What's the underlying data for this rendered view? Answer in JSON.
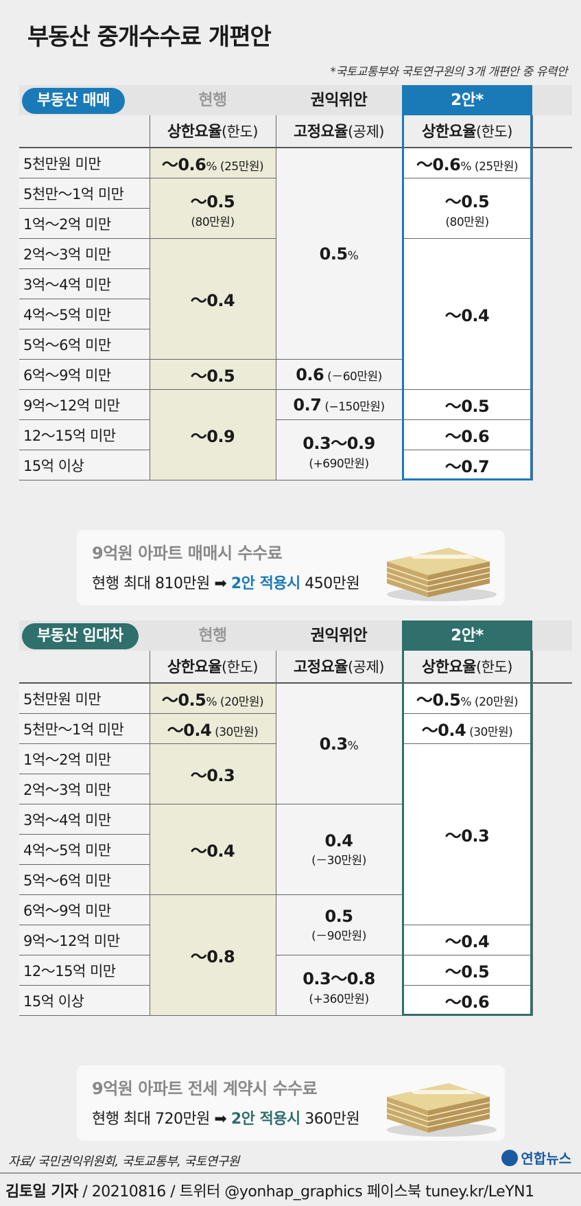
{
  "title": "부동산 중개수수료 개편안",
  "note": "*국토교통부와 국토연구원의 3개 개편안 중 유력안",
  "chart_data": {
    "type": "table",
    "tables": [
      {
        "tag": "부동산 매매",
        "columns": [
          "현행",
          "권익위안",
          "2안*"
        ],
        "subcolumns": [
          {
            "main": "상한요율",
            "paren": "(한도)"
          },
          {
            "main": "고정요율",
            "paren": "(공제)"
          },
          {
            "main": "상한요율",
            "paren": "(한도)"
          }
        ],
        "rows": [
          "5천만원 미만",
          "5천만～1억 미만",
          "1억～2억 미만",
          "2억～3억 미만",
          "3억～4억 미만",
          "4억～5억 미만",
          "5억～6억 미만",
          "6억～9억 미만",
          "9억～12억 미만",
          "12～15억 미만",
          "15억 이상"
        ],
        "current": [
          {
            "rows": [
              0,
              0
            ],
            "main": "～0.6",
            "unit": "%",
            "sub": "(25만원)"
          },
          {
            "rows": [
              1,
              2
            ],
            "main": "～0.5",
            "sub": "(80만원)"
          },
          {
            "rows": [
              3,
              6
            ],
            "main": "～0.4"
          },
          {
            "rows": [
              7,
              7
            ],
            "main": "～0.5"
          },
          {
            "rows": [
              8,
              10
            ],
            "main": "～0.9"
          }
        ],
        "acrc": [
          {
            "rows": [
              0,
              6
            ],
            "main": "0.5",
            "unit": "%"
          },
          {
            "rows": [
              7,
              7
            ],
            "main": "0.6",
            "sub": "(－60만원)"
          },
          {
            "rows": [
              8,
              8
            ],
            "main": "0.7",
            "sub": "(−150만원)"
          },
          {
            "rows": [
              9,
              10
            ],
            "main": "0.3～0.9",
            "sub": "(+690만원)"
          }
        ],
        "plan2": [
          {
            "rows": [
              0,
              0
            ],
            "main": "～0.6",
            "unit": "%",
            "sub": "(25만원)"
          },
          {
            "rows": [
              1,
              2
            ],
            "main": "～0.5",
            "sub": "(80만원)"
          },
          {
            "rows": [
              3,
              7
            ],
            "main": "～0.4"
          },
          {
            "rows": [
              8,
              8
            ],
            "main": "～0.5"
          },
          {
            "rows": [
              9,
              9
            ],
            "main": "～0.6"
          },
          {
            "rows": [
              10,
              10
            ],
            "main": "～0.7"
          }
        ]
      },
      {
        "tag": "부동산 임대차",
        "columns": [
          "현행",
          "권익위안",
          "2안*"
        ],
        "subcolumns": [
          {
            "main": "상한요율",
            "paren": "(한도)"
          },
          {
            "main": "고정요율",
            "paren": "(공제)"
          },
          {
            "main": "상한요율",
            "paren": "(한도)"
          }
        ],
        "rows": [
          "5천만원 미만",
          "5천만～1억 미만",
          "1억～2억 미만",
          "2억～3억 미만",
          "3억～4억 미만",
          "4억～5억 미만",
          "5억～6억 미만",
          "6억～9억 미만",
          "9억～12억 미만",
          "12～15억 미만",
          "15억 이상"
        ],
        "current": [
          {
            "rows": [
              0,
              0
            ],
            "main": "～0.5",
            "unit": "%",
            "sub": "(20만원)"
          },
          {
            "rows": [
              1,
              1
            ],
            "main": "～0.4",
            "sub": "(30만원)"
          },
          {
            "rows": [
              2,
              3
            ],
            "main": "～0.3"
          },
          {
            "rows": [
              4,
              6
            ],
            "main": "～0.4"
          },
          {
            "rows": [
              7,
              10
            ],
            "main": "～0.8"
          }
        ],
        "acrc": [
          {
            "rows": [
              0,
              3
            ],
            "main": "0.3",
            "unit": "%"
          },
          {
            "rows": [
              4,
              6
            ],
            "main": "0.4",
            "sub": "(－30만원)"
          },
          {
            "rows": [
              7,
              8
            ],
            "main": "0.5",
            "sub": "(－90만원)"
          },
          {
            "rows": [
              9,
              10
            ],
            "main": "0.3～0.8",
            "sub": "(+360만원)"
          }
        ],
        "plan2": [
          {
            "rows": [
              0,
              0
            ],
            "main": "～0.5",
            "unit": "%",
            "sub": "(20만원)"
          },
          {
            "rows": [
              1,
              1
            ],
            "main": "～0.4",
            "sub": "(30만원)"
          },
          {
            "rows": [
              2,
              7
            ],
            "main": "～0.3"
          },
          {
            "rows": [
              8,
              8
            ],
            "main": "～0.4"
          },
          {
            "rows": [
              9,
              9
            ],
            "main": "～0.5"
          },
          {
            "rows": [
              10,
              10
            ],
            "main": "～0.6"
          }
        ]
      }
    ]
  },
  "callouts": [
    {
      "title": "9억원 아파트 매매시 수수료",
      "pre": "현행 최대 810만원",
      "hl": "2안 적용시",
      "post": "450만원"
    },
    {
      "title": "9억원 아파트 전세 계약시 수수료",
      "pre": "현행 최대 720만원",
      "hl": "2안 적용시",
      "post": "360만원"
    }
  ],
  "colors": {
    "sale_accent": "#1a7ab8",
    "lease_accent": "#2f6f6c",
    "current_fill": "#ecebd8",
    "plan_fill": "#ffffff",
    "header_gray": "#e4e4e4"
  },
  "footer": {
    "source": "자료/ 국민권익위원회, 국토교통부, 국토연구원",
    "author": "김토일 기자",
    "credit": " / 20210816 / 트위터 @yonhap_graphics  페이스북 tuney.kr/LeYN1",
    "logo": "연합뉴스"
  }
}
